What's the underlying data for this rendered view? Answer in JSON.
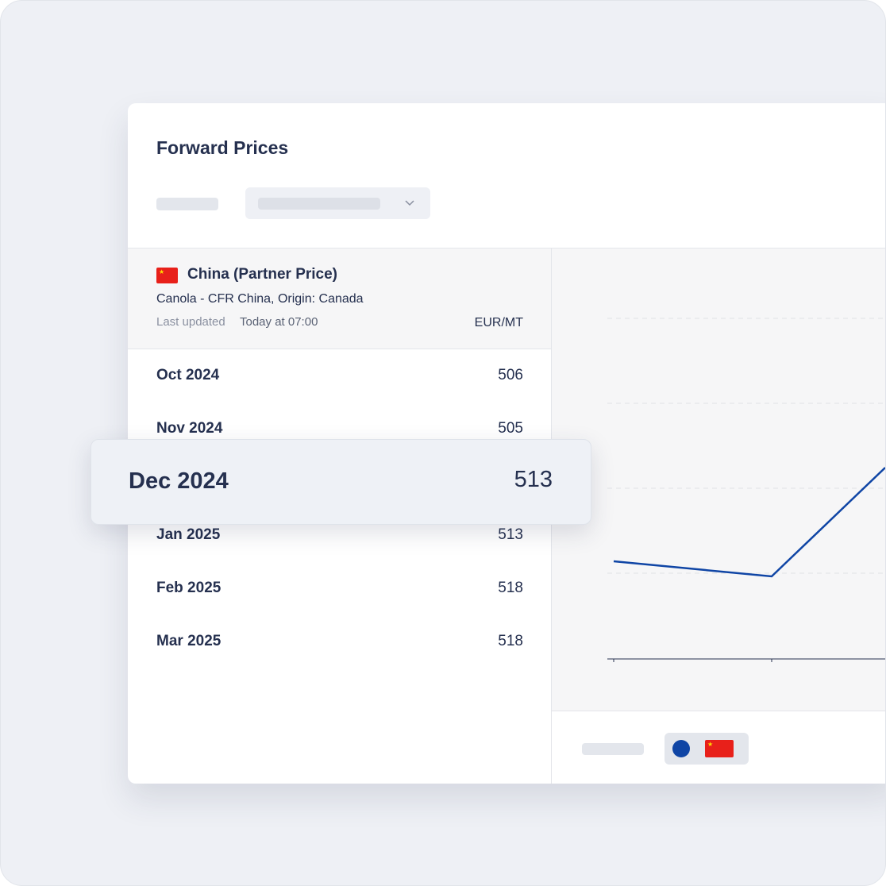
{
  "header": {
    "title": "Forward Prices"
  },
  "market": {
    "name": "China (Partner Price)",
    "product": "Canola - CFR China, Origin: Canada",
    "updated_label": "Last updated",
    "updated_time": "Today at 07:00",
    "unit": "EUR/MT"
  },
  "table": {
    "rows": [
      [
        "Oct 2024",
        506
      ],
      [
        "Nov 2024",
        505
      ],
      [
        "Dec 2024",
        513
      ],
      [
        "Jan 2025",
        513
      ],
      [
        "Feb 2025",
        518
      ],
      [
        "Mar 2025",
        518
      ]
    ],
    "highlighted_row": 2
  }
}
